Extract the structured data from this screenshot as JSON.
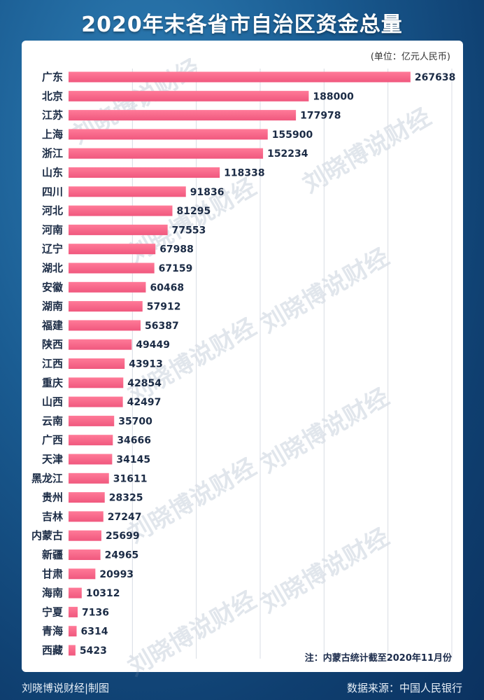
{
  "chart_data": {
    "type": "bar",
    "orientation": "horizontal",
    "title": "2020年末各省市自治区资金总量",
    "unit": "(单位：亿元人民币)",
    "note": "注：内蒙古统计截至2020年11月份",
    "categories": [
      "广东",
      "北京",
      "江苏",
      "上海",
      "浙江",
      "山东",
      "四川",
      "河北",
      "河南",
      "辽宁",
      "湖北",
      "安徽",
      "湖南",
      "福建",
      "陕西",
      "江西",
      "重庆",
      "山西",
      "云南",
      "广西",
      "天津",
      "黑龙江",
      "贵州",
      "吉林",
      "内蒙古",
      "新疆",
      "甘肃",
      "海南",
      "宁夏",
      "青海",
      "西藏"
    ],
    "values": [
      267638,
      188000,
      177978,
      155900,
      152234,
      118338,
      91836,
      81295,
      77553,
      67988,
      67159,
      60468,
      57912,
      56387,
      49449,
      43913,
      42854,
      42497,
      35700,
      34666,
      34145,
      31611,
      28325,
      27247,
      25699,
      24965,
      20993,
      10312,
      7136,
      6314,
      5423
    ],
    "xlim": [
      0,
      300000
    ],
    "grid": true,
    "bar_color": "#f0587e"
  },
  "footer": {
    "left": "刘晓博说财经|制图",
    "right": "数据来源：中国人民银行"
  }
}
